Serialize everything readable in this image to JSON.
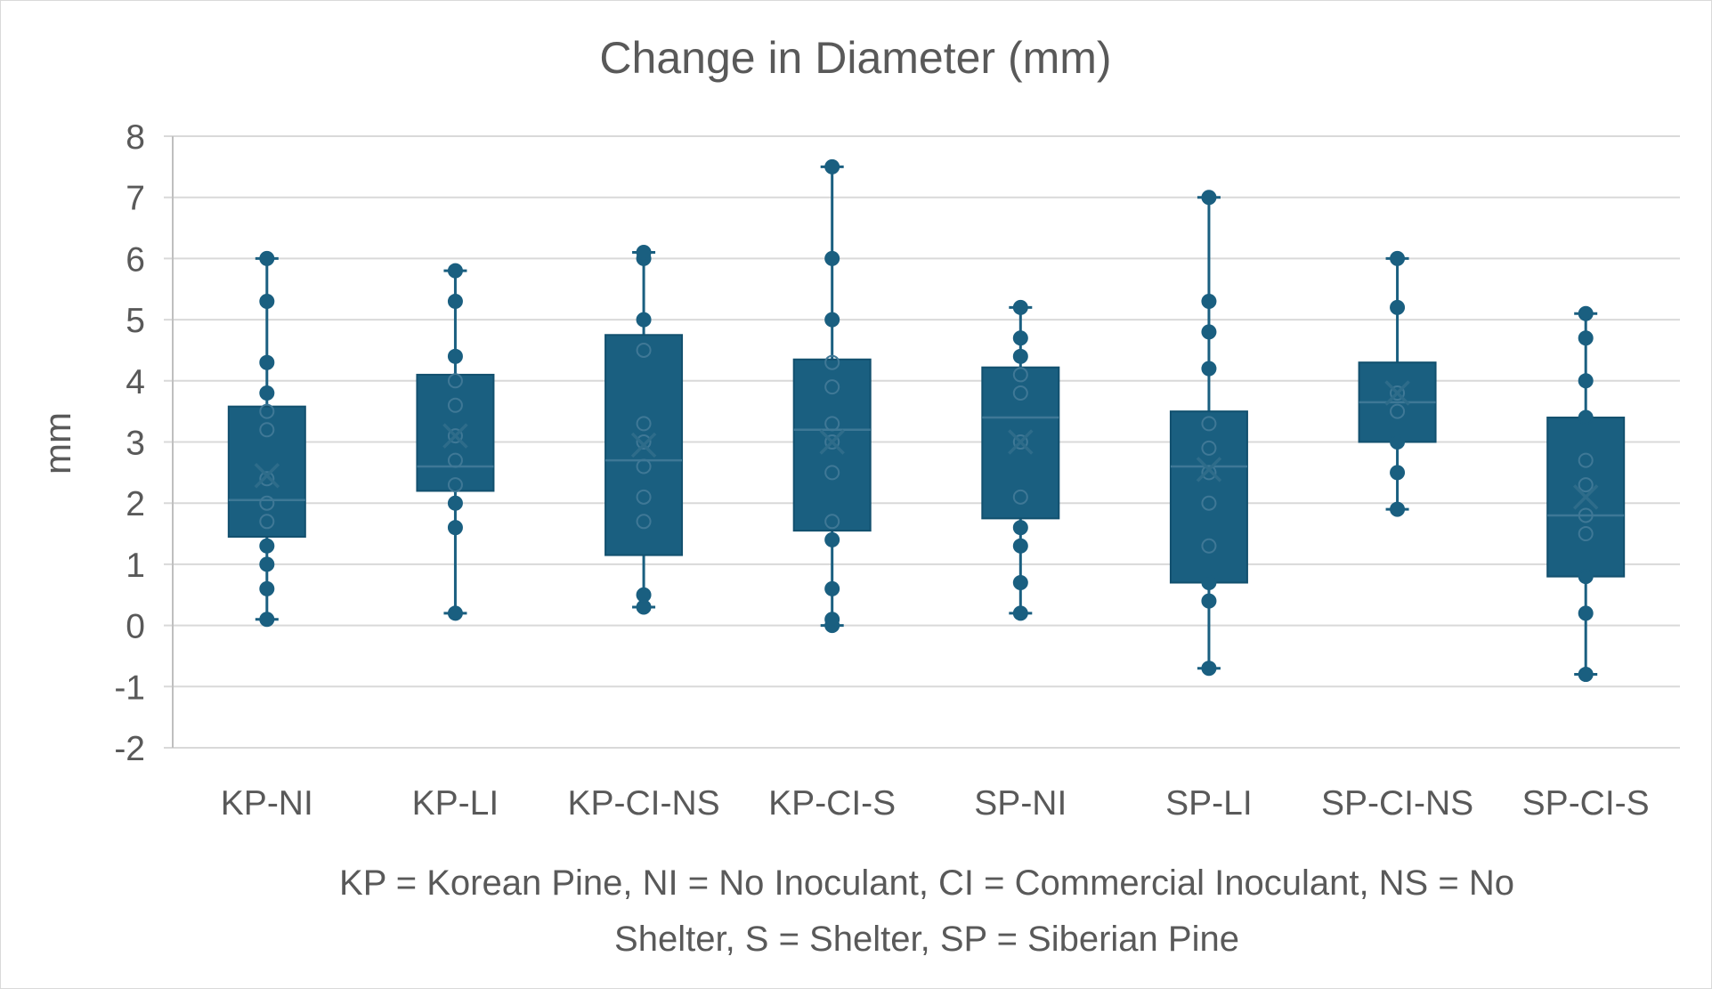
{
  "chart_data": {
    "type": "box",
    "title": "Change in Diameter (mm)",
    "ylabel": "mm",
    "xlabel": "",
    "ylim": [
      -2,
      8
    ],
    "yticks": [
      8,
      7,
      6,
      5,
      4,
      3,
      2,
      1,
      0,
      -1,
      -2
    ],
    "grid": true,
    "color": "#1a5f80",
    "categories": [
      "KP-NI",
      "KP-LI",
      "KP-CI-NS",
      "KP-CI-S",
      "SP-NI",
      "SP-LI",
      "SP-CI-NS",
      "SP-CI-S"
    ],
    "boxes": [
      {
        "name": "KP-NI",
        "min": 0.1,
        "q1": 1.45,
        "median": 2.05,
        "q3": 3.58,
        "max": 6.0,
        "mean": 2.45,
        "points": [
          0.1,
          0.6,
          1.0,
          1.3,
          1.7,
          2.0,
          2.4,
          3.2,
          3.5,
          3.8,
          4.3,
          5.3,
          6.0
        ]
      },
      {
        "name": "KP-LI",
        "min": 0.2,
        "q1": 2.2,
        "median": 2.6,
        "q3": 4.1,
        "max": 5.8,
        "mean": 3.1,
        "points": [
          0.2,
          1.6,
          2.0,
          2.3,
          2.7,
          3.1,
          3.6,
          4.0,
          4.4,
          5.3,
          5.8
        ]
      },
      {
        "name": "KP-CI-NS",
        "min": 0.3,
        "q1": 1.15,
        "median": 2.7,
        "q3": 4.75,
        "max": 6.1,
        "mean": 2.95,
        "points": [
          0.3,
          0.5,
          1.7,
          2.1,
          2.6,
          3.0,
          3.3,
          4.5,
          5.0,
          6.0,
          6.1
        ]
      },
      {
        "name": "KP-CI-S",
        "min": 0.0,
        "q1": 1.55,
        "median": 3.2,
        "q3": 4.35,
        "max": 7.5,
        "mean": 3.0,
        "points": [
          0.0,
          0.1,
          0.6,
          1.4,
          1.7,
          2.5,
          3.0,
          3.3,
          3.9,
          4.3,
          5.0,
          6.0,
          7.5
        ]
      },
      {
        "name": "SP-NI",
        "min": 0.2,
        "q1": 1.75,
        "median": 3.4,
        "q3": 4.22,
        "max": 5.2,
        "mean": 3.0,
        "points": [
          0.2,
          0.7,
          1.3,
          1.6,
          2.1,
          3.0,
          3.8,
          4.1,
          4.4,
          4.7,
          5.2
        ]
      },
      {
        "name": "SP-LI",
        "min": -0.7,
        "q1": 0.7,
        "median": 2.6,
        "q3": 3.5,
        "max": 7.0,
        "mean": 2.55,
        "points": [
          -0.7,
          0.4,
          0.7,
          1.3,
          2.0,
          2.5,
          2.9,
          3.3,
          4.2,
          4.8,
          5.3,
          7.0
        ]
      },
      {
        "name": "SP-CI-NS",
        "min": 1.9,
        "q1": 3.0,
        "median": 3.65,
        "q3": 4.3,
        "max": 6.0,
        "mean": 3.8,
        "points": [
          1.9,
          2.5,
          3.0,
          3.5,
          3.8,
          5.2,
          6.0
        ]
      },
      {
        "name": "SP-CI-S",
        "min": -0.8,
        "q1": 0.8,
        "median": 1.8,
        "q3": 3.4,
        "max": 5.1,
        "mean": 2.1,
        "points": [
          -0.8,
          0.2,
          0.8,
          1.5,
          1.8,
          2.3,
          2.7,
          3.4,
          4.0,
          4.7,
          5.1
        ]
      }
    ],
    "footnote": [
      "KP = Korean Pine, NI = No Inoculant, CI = Commercial Inoculant, NS = No",
      "Shelter, S = Shelter, SP = Siberian Pine"
    ]
  }
}
